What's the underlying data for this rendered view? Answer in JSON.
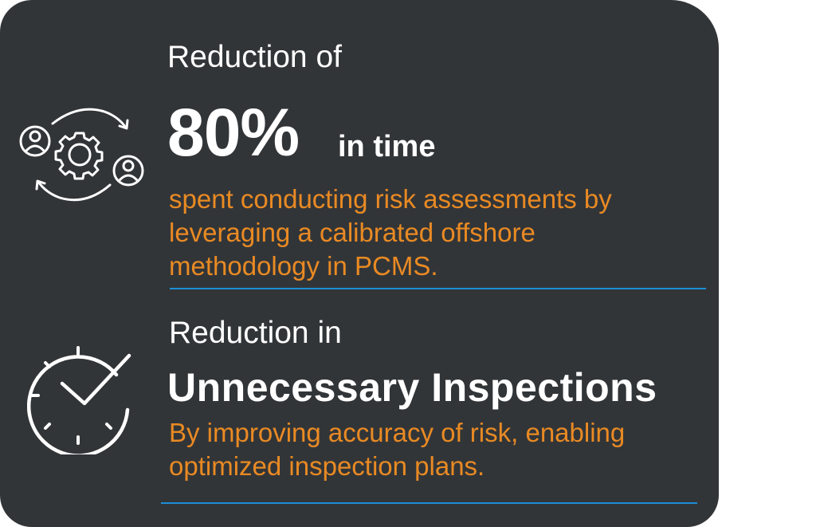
{
  "section1": {
    "intro": "Reduction of",
    "headline": "80%",
    "headline_suffix": "in time",
    "description": "spent conducting risk assessments by leveraging a calibrated offshore methodology in PCMS."
  },
  "section2": {
    "intro": "Reduction in",
    "headline": "Unnecessary Inspections",
    "description": "By improving accuracy of risk, enabling optimized inspection plans."
  },
  "icons": {
    "section1": "people-gear-cycle-icon",
    "section2": "clock-checkmark-icon"
  },
  "colors": {
    "background": "#323538",
    "headline": "#ffffff",
    "description": "#e98a23",
    "divider": "#1c8fd6"
  }
}
